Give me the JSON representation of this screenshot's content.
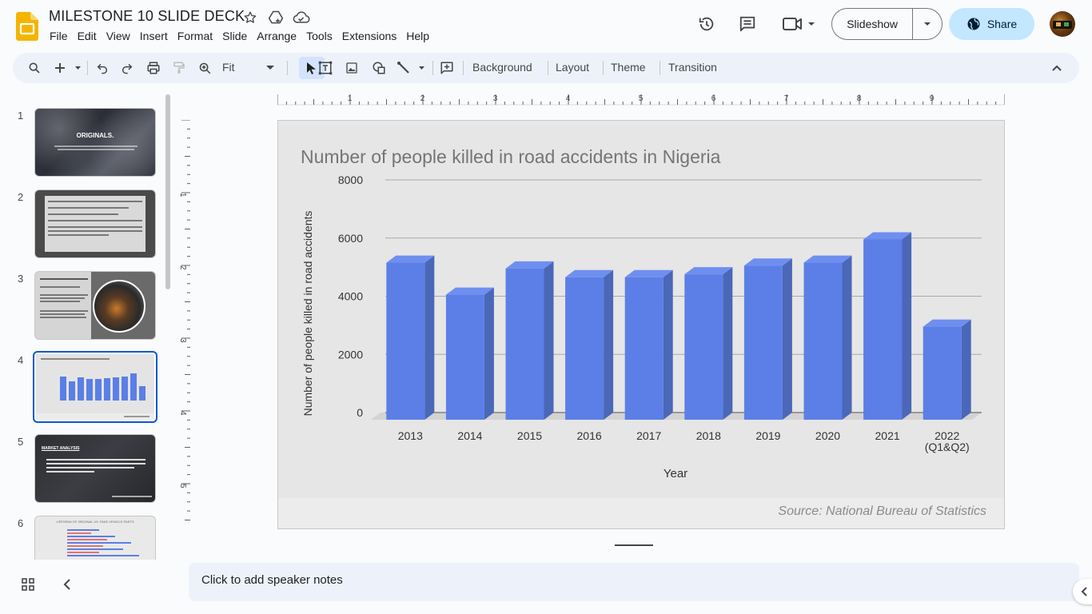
{
  "document": {
    "title": "MILESTONE 10 SLIDE DECK"
  },
  "menu": [
    "File",
    "Edit",
    "View",
    "Insert",
    "Format",
    "Slide",
    "Arrange",
    "Tools",
    "Extensions",
    "Help"
  ],
  "header": {
    "slideshow_label": "Slideshow",
    "share_label": "Share"
  },
  "toolbar": {
    "zoom_label": "Fit",
    "background_label": "Background",
    "layout_label": "Layout",
    "theme_label": "Theme",
    "transition_label": "Transition"
  },
  "ruler": {
    "h_labels": [
      "1",
      "2",
      "3",
      "4",
      "5",
      "6",
      "7",
      "8",
      "9"
    ],
    "v_labels": [
      "1",
      "2",
      "3",
      "4",
      "5"
    ]
  },
  "filmstrip": {
    "slides": [
      {
        "num": "1",
        "title": "ORIGINALS."
      },
      {
        "num": "2",
        "title": ""
      },
      {
        "num": "3",
        "title": ""
      },
      {
        "num": "4",
        "title": "Number of people killed in road accidents in Nigeria"
      },
      {
        "num": "5",
        "title": "MARKET ANALYSIS"
      },
      {
        "num": "6",
        "title": "LIFESPAN OF ORIGINAL VS. FAKE VEHICLE PARTS"
      }
    ],
    "selected": "4"
  },
  "chart_data": {
    "type": "bar",
    "title": "Number of people killed in road accidents in Nigeria",
    "xlabel": "Year",
    "ylabel": "Number of people killed in road accidents",
    "categories": [
      "2013",
      "2014",
      "2015",
      "2016",
      "2017",
      "2018",
      "2019",
      "2020",
      "2021",
      "2022\n(Q1&Q2)"
    ],
    "values": [
      5400,
      4300,
      5200,
      4900,
      4900,
      5000,
      5300,
      5400,
      6200,
      3200
    ],
    "ylim": [
      0,
      8000
    ],
    "yticks": [
      "0",
      "2000",
      "4000",
      "6000",
      "8000"
    ],
    "grid": true,
    "bar_color": "#5b7fe6",
    "source": "Source: National Bureau of Statistics"
  },
  "notes": {
    "placeholder": "Click to add speaker notes"
  },
  "colors": {
    "accent": "#0b57d0",
    "share_bg": "#c2e7ff",
    "toolbar_bg": "#edf2fa"
  }
}
